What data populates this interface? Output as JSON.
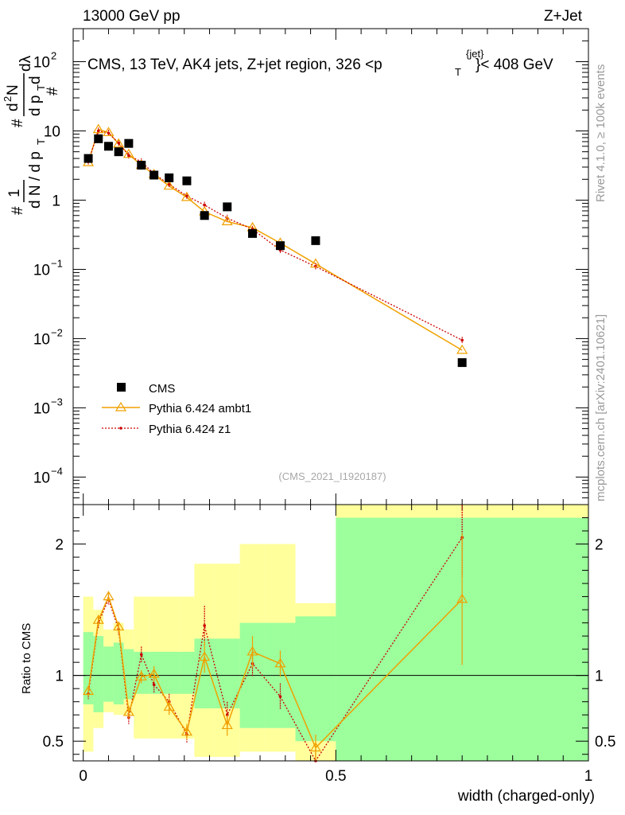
{
  "header": {
    "left_text": "13000 GeV pp",
    "right_text": "Z+Jet"
  },
  "side_labels": {
    "rivet": "Rivet 4.1.0, ≥ 100k events",
    "mcplots": "mcplots.cern.ch [arXiv:2401.10621]"
  },
  "watermark": "(CMS_2021_I1920187)",
  "colors": {
    "data": "#000000",
    "ambt1": "#f0a000",
    "z1": "#cc0000",
    "band_inner": "#9cff9c",
    "band_outer": "#ffff9c"
  },
  "chart_data": {
    "type": "scatter",
    "title": "CMS, 13 TeV, AK4 jets, Z+jet region, 326 <p_T^{jet}< 408 GeV",
    "title_parts": {
      "prefix": "CMS, 13 TeV, AK4 jets, Z+jet region, 326 <p",
      "sub": "T",
      "sup": "{jet}",
      "suffix": "}< 408 GeV"
    },
    "xlabel": "width (charged-only)",
    "ylabel": "1/dN/dp_T d²N/dp_T dλ",
    "ratio_ylabel": "Ratio to CMS",
    "xlim": [
      -0.02,
      1.0
    ],
    "ylim": [
      4e-05,
      300
    ],
    "yscale": "log",
    "ratio_ylim": [
      0.35,
      2.3
    ],
    "xticks": [
      {
        "v": 0,
        "label": "0"
      },
      {
        "v": 0.5,
        "label": "0.5"
      },
      {
        "v": 1,
        "label": "1"
      }
    ],
    "yticks": [
      {
        "v": 0.0001,
        "base": "10",
        "exp": "−4"
      },
      {
        "v": 0.001,
        "base": "10",
        "exp": "−3"
      },
      {
        "v": 0.01,
        "base": "10",
        "exp": "−2"
      },
      {
        "v": 0.1,
        "base": "10",
        "exp": "−1"
      },
      {
        "v": 1,
        "base": "1",
        "exp": ""
      },
      {
        "v": 10,
        "base": "10",
        "exp": ""
      },
      {
        "v": 100,
        "base": "10",
        "exp": "2"
      }
    ],
    "ratio_yticks": [
      {
        "v": 0.5,
        "label": "0.5"
      },
      {
        "v": 1,
        "label": "1"
      },
      {
        "v": 2,
        "label": "2"
      }
    ],
    "legend": {
      "position": "bottom-left",
      "entries": [
        "CMS",
        "Pythia 6.424 ambt1",
        "Pythia 6.424 z1"
      ]
    },
    "series": [
      {
        "name": "CMS",
        "x": [
          0.01,
          0.03,
          0.05,
          0.07,
          0.09,
          0.115,
          0.14,
          0.17,
          0.205,
          0.24,
          0.285,
          0.335,
          0.39,
          0.46,
          0.75
        ],
        "y": [
          4.0,
          7.7,
          6.0,
          5.0,
          6.6,
          3.2,
          2.3,
          2.1,
          1.9,
          0.6,
          0.8,
          0.33,
          0.22,
          0.26,
          0.0045
        ],
        "band_lo_inner": [
          0.78,
          0.72,
          0.8,
          0.78,
          0.82,
          0.86,
          0.86,
          0.86,
          0.86,
          0.75,
          0.75,
          0.6,
          0.6,
          0.5,
          0.3
        ],
        "band_hi_inner": [
          1.33,
          1.3,
          1.22,
          1.25,
          1.2,
          1.18,
          1.18,
          1.18,
          1.18,
          1.28,
          1.28,
          1.4,
          1.4,
          1.45,
          2.2
        ],
        "band_lo_outer": [
          0.42,
          0.6,
          0.72,
          0.7,
          0.7,
          0.52,
          0.52,
          0.52,
          0.52,
          0.38,
          0.38,
          0.42,
          0.42,
          0.3,
          0.3
        ],
        "band_hi_outer": [
          1.6,
          1.5,
          1.35,
          1.4,
          1.35,
          1.6,
          1.6,
          1.6,
          1.6,
          1.85,
          1.85,
          2.0,
          2.0,
          1.55,
          2.3
        ],
        "edges": [
          0.0,
          0.02,
          0.04,
          0.06,
          0.08,
          0.1,
          0.13,
          0.15,
          0.19,
          0.22,
          0.26,
          0.31,
          0.36,
          0.42,
          0.5,
          1.0
        ]
      },
      {
        "name": "Pythia 6.424 ambt1",
        "x": [
          0.01,
          0.03,
          0.05,
          0.07,
          0.09,
          0.115,
          0.14,
          0.17,
          0.205,
          0.24,
          0.285,
          0.335,
          0.39,
          0.46,
          0.75
        ],
        "y": [
          3.5,
          10.5,
          9.5,
          6.5,
          4.6,
          3.2,
          2.35,
          1.6,
          1.1,
          0.68,
          0.49,
          0.4,
          0.24,
          0.12,
          0.0068
        ],
        "ratio": [
          0.88,
          1.42,
          1.6,
          1.37,
          0.72,
          0.99,
          1.01,
          0.76,
          0.57,
          1.14,
          0.62,
          1.18,
          1.09,
          0.45,
          1.58
        ],
        "ratio_err": [
          0.04,
          0.04,
          0.04,
          0.04,
          0.05,
          0.05,
          0.06,
          0.06,
          0.06,
          0.12,
          0.08,
          0.12,
          0.1,
          0.1,
          0.5
        ]
      },
      {
        "name": "Pythia 6.424 z1",
        "x": [
          0.01,
          0.03,
          0.05,
          0.07,
          0.09,
          0.115,
          0.14,
          0.17,
          0.205,
          0.24,
          0.285,
          0.335,
          0.39,
          0.46,
          0.75
        ],
        "y": [
          3.6,
          10.0,
          9.3,
          6.7,
          4.4,
          3.6,
          2.4,
          1.7,
          1.15,
          0.85,
          0.55,
          0.38,
          0.19,
          0.11,
          0.0095
        ],
        "ratio": [
          0.86,
          1.4,
          1.58,
          1.35,
          0.68,
          1.16,
          0.93,
          0.8,
          0.55,
          1.38,
          0.7,
          1.09,
          0.84,
          0.34,
          2.05
        ],
        "ratio_err": [
          0.04,
          0.04,
          0.04,
          0.04,
          0.05,
          0.06,
          0.06,
          0.06,
          0.06,
          0.15,
          0.1,
          0.1,
          0.1,
          0.1,
          0.3
        ]
      }
    ]
  }
}
